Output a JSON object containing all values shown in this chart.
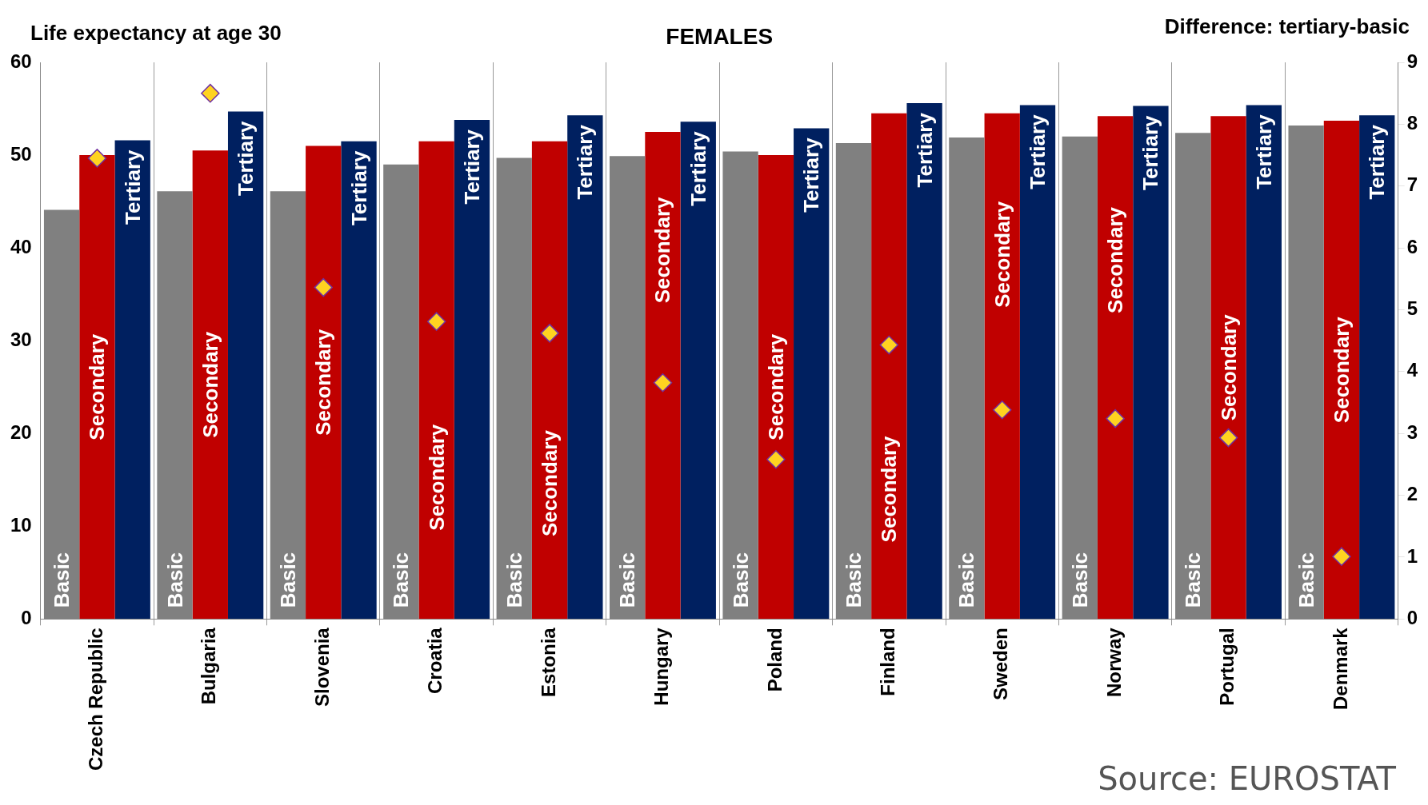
{
  "chart_data": {
    "type": "bar",
    "title": "FEMALES",
    "ylabel": "Life expectancy at age 30",
    "y2label": "Difference: tertiary-basic",
    "categories": [
      "Czech Republic",
      "Bulgaria",
      "Slovenia",
      "Croatia",
      "Estonia",
      "Hungary",
      "Poland",
      "Finland",
      "Sweden",
      "Norway",
      "Portugal",
      "Denmark"
    ],
    "series": [
      {
        "name": "Basic",
        "color": "#808080",
        "values": [
          44.1,
          46.1,
          46.1,
          49.0,
          49.7,
          49.9,
          50.4,
          51.3,
          51.9,
          52.0,
          52.4,
          53.2
        ]
      },
      {
        "name": "Secondary",
        "color": "#c00000",
        "values": [
          50.0,
          50.5,
          51.0,
          51.5,
          51.5,
          52.5,
          50.0,
          54.5,
          54.5,
          54.2,
          54.2,
          53.7
        ]
      },
      {
        "name": "Tertiary",
        "color": "#002060",
        "values": [
          51.6,
          54.7,
          51.5,
          53.8,
          54.3,
          53.6,
          52.9,
          55.6,
          55.4,
          55.3,
          55.4,
          54.3
        ]
      },
      {
        "type": "scatter",
        "axis": "y2",
        "color": "#ffd320",
        "marker": "diamond",
        "x": [
          "Czech Republic",
          "Bulgaria",
          "Slovenia",
          "Croatia",
          "Estonia",
          "Hungary",
          "Poland",
          "Finland",
          "Sweden",
          "Norway",
          "Portugal",
          "Denmark"
        ],
        "values": [
          7.45,
          8.5,
          5.36,
          4.81,
          4.62,
          3.82,
          2.58,
          4.43,
          3.38,
          3.24,
          2.93,
          1.01
        ]
      }
    ],
    "ylim": [
      0,
      60
    ],
    "yticks": [
      0,
      10,
      20,
      30,
      40,
      50,
      60
    ],
    "y2lim": [
      0,
      9
    ],
    "y2ticks": [
      0,
      1,
      2,
      3,
      4,
      5,
      6,
      7,
      8,
      9
    ],
    "grid": "x",
    "legend": false,
    "annotations": [
      "Source: EUROSTAT"
    ]
  }
}
